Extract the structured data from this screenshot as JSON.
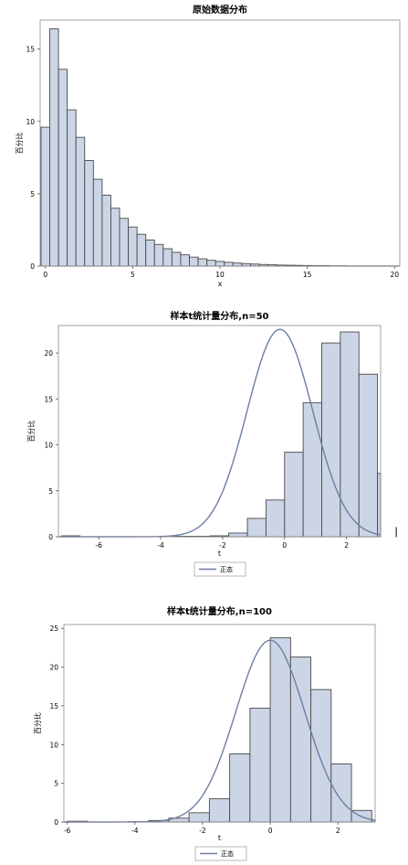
{
  "chart_data": [
    {
      "type": "bar",
      "title": "原始数据分布",
      "xlabel": "x",
      "ylabel": "百分比",
      "xlim": [
        -0.3,
        20.3
      ],
      "ylim": [
        0,
        17
      ],
      "xticks": [
        0,
        5,
        10,
        15,
        20
      ],
      "yticks": [
        0,
        5,
        10,
        15
      ],
      "bin_width": 0.5,
      "bin_start": -0.25,
      "values": [
        9.6,
        16.4,
        13.6,
        10.8,
        8.9,
        7.3,
        6.0,
        4.9,
        4.0,
        3.3,
        2.7,
        2.2,
        1.8,
        1.5,
        1.2,
        0.95,
        0.78,
        0.62,
        0.5,
        0.4,
        0.32,
        0.26,
        0.21,
        0.17,
        0.14,
        0.11,
        0.09,
        0.07,
        0.06,
        0.05,
        0.04,
        0.03,
        0.03,
        0.02,
        0.02,
        0.01,
        0.01,
        0.01,
        0.01,
        0.01,
        0.01
      ],
      "bar_color": "#cbd5e5",
      "edge_color": "#4a4a4a",
      "legend": null
    },
    {
      "type": "bar",
      "title": "样本t统计量分布,n=50",
      "xlabel": "t",
      "ylabel": "百分比",
      "xlim": [
        -7.3,
        3.1
      ],
      "ylim": [
        0,
        23
      ],
      "xticks": [
        -6,
        -4,
        -2,
        0,
        2
      ],
      "yticks": [
        0,
        5,
        10,
        15,
        20
      ],
      "bin_width": 0.6,
      "bin_start": -7.2,
      "values": [
        0.1,
        0,
        0,
        0,
        0,
        0,
        0.05,
        0.05,
        0.1,
        0.4,
        2.0,
        4.0,
        9.2,
        14.6,
        21.1,
        22.3,
        17.7,
        6.9,
        1.0,
        0.5
      ],
      "bar_color": "#cbd5e5",
      "edge_color": "#4a4a4a",
      "curve": {
        "name": "正态",
        "mean": -0.15,
        "sd": 1.06,
        "bin_width": 0.6,
        "color": "#6b7fa3"
      },
      "legend": {
        "entries": [
          "正态"
        ],
        "position": "bottom"
      }
    },
    {
      "type": "bar",
      "title": "样本t统计量分布,n=100",
      "xlabel": "t",
      "ylabel": "百分比",
      "xlim": [
        -6.1,
        3.1
      ],
      "ylim": [
        0,
        25.5
      ],
      "xticks": [
        -6,
        -4,
        -2,
        0,
        2
      ],
      "yticks": [
        0,
        5,
        10,
        15,
        20,
        25
      ],
      "bin_width": 0.6,
      "bin_start": -6.0,
      "values": [
        0.1,
        0,
        0,
        0.05,
        0.2,
        0.5,
        1.2,
        3.0,
        8.8,
        14.7,
        23.8,
        21.3,
        17.1,
        7.5,
        1.5,
        0.3
      ],
      "bar_color": "#cbd5e5",
      "edge_color": "#4a4a4a",
      "curve": {
        "name": "正态",
        "mean": 0.0,
        "sd": 1.02,
        "bin_width": 0.6,
        "color": "#6b7fa3"
      },
      "legend": {
        "entries": [
          "正态"
        ],
        "position": "bottom"
      }
    }
  ]
}
